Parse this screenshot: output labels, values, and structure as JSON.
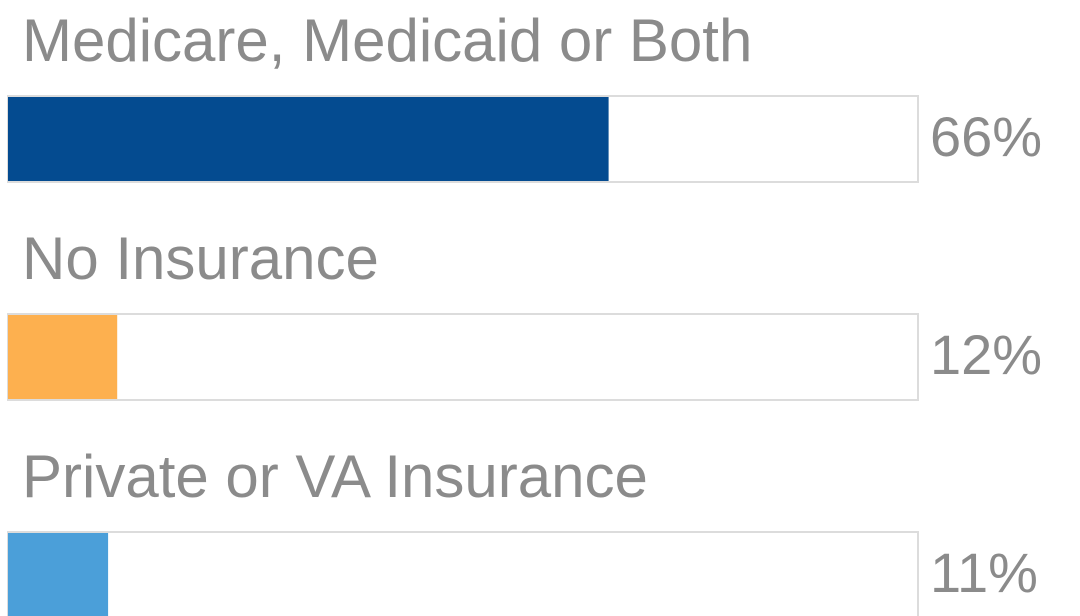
{
  "chart_data": {
    "type": "progress-bar",
    "categories": [
      "Medicare, Medicaid or Both",
      "No Insurance",
      "Private or VA Insurance"
    ],
    "values": [
      66,
      12,
      11
    ],
    "value_labels": [
      "66%",
      "12%",
      "11%"
    ],
    "colors": [
      "#044b90",
      "#fdb04f",
      "#4b9fd9"
    ],
    "xlim": [
      0,
      100
    ]
  }
}
